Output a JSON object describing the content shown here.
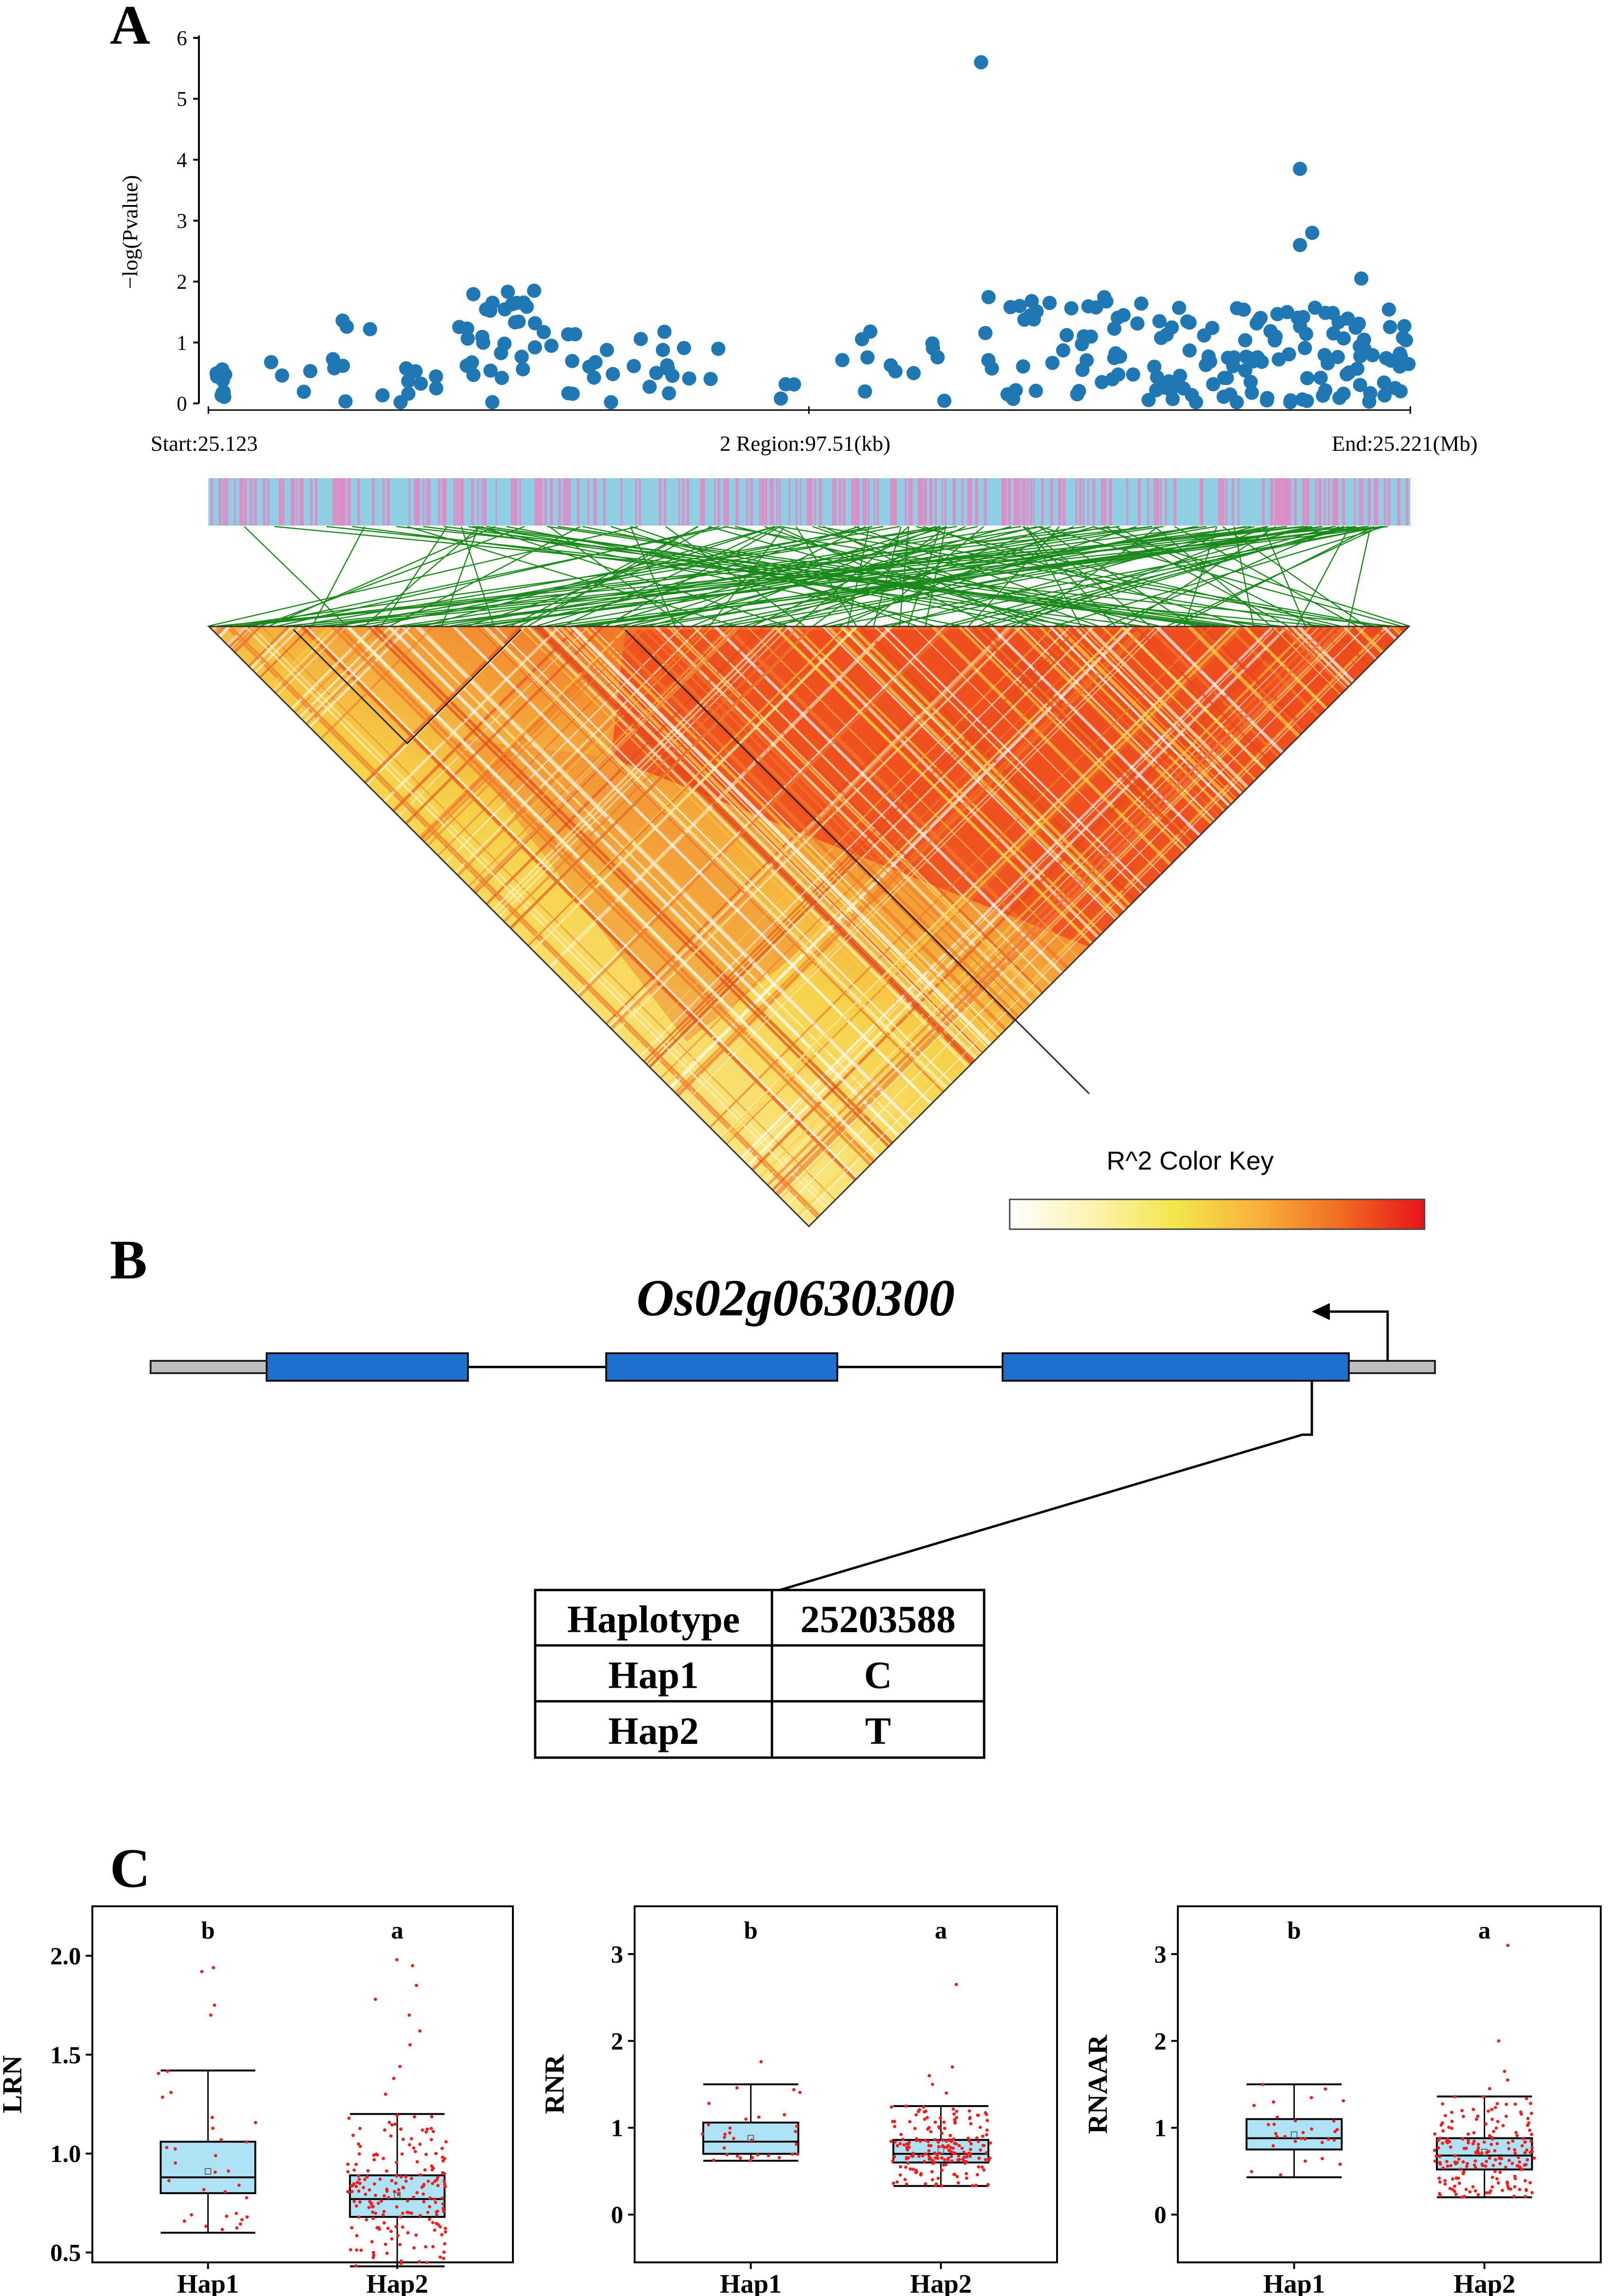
{
  "panels": {
    "A": "A",
    "B": "B",
    "C": "C"
  },
  "manhattan": {
    "ylabel": "−log(Pvalue)",
    "y_ticks": [
      "0",
      "1",
      "2",
      "3",
      "4",
      "5",
      "6"
    ],
    "start_label": "Start:25.123",
    "region_label": "2 Region:97.51(kb)",
    "end_label": "End:25.221(Mb)",
    "point_color": "#1f77b4"
  },
  "ld": {
    "color_key_title": "R^2 Color Key",
    "colors": [
      "#ffffff",
      "#fef8c8",
      "#f9ec78",
      "#f3e245",
      "#f9b23a",
      "#f77d24",
      "#ef3b1c",
      "#e8141a"
    ]
  },
  "gene": {
    "name": "Os02g0630300",
    "exon_color": "#1f6fcf"
  },
  "haplotype_table": {
    "headers": [
      "Haplotype",
      "25203588"
    ],
    "rows": [
      [
        "Hap1",
        "C"
      ],
      [
        "Hap2",
        "T"
      ]
    ]
  },
  "chart_data": [
    {
      "type": "scatter",
      "title": "",
      "xlabel": "2 Region:97.51(kb)",
      "ylabel": "−log(Pvalue)",
      "xlim": [
        25.123,
        25.221
      ],
      "ylim": [
        0,
        6
      ],
      "notable_points": [
        {
          "x": 25.186,
          "y": 5.6
        },
        {
          "x": 25.212,
          "y": 3.85
        },
        {
          "x": 25.213,
          "y": 2.8
        },
        {
          "x": 25.212,
          "y": 2.6
        },
        {
          "x": 25.217,
          "y": 2.05
        }
      ]
    },
    {
      "type": "box",
      "ylabel": "LRN",
      "categories": [
        "Hap1",
        "Hap2"
      ],
      "y_ticks": [
        "0.5",
        "1.0",
        "1.5",
        "2.0"
      ],
      "ylim": [
        0.45,
        2.25
      ],
      "letters": [
        "b",
        "a"
      ],
      "boxes": [
        {
          "min": 0.6,
          "q1": 0.8,
          "median": 0.88,
          "mean": 0.91,
          "q3": 1.06,
          "max": 1.42
        },
        {
          "min": 0.43,
          "q1": 0.68,
          "median": 0.77,
          "mean": 0.79,
          "q3": 0.89,
          "max": 1.2
        }
      ],
      "outliers": [
        [
          1.7,
          1.75,
          1.92,
          1.94
        ],
        [
          1.3,
          1.38,
          1.44,
          1.55,
          1.62,
          1.7,
          1.78,
          1.85,
          1.95,
          1.98
        ]
      ]
    },
    {
      "type": "box",
      "ylabel": "RNR",
      "categories": [
        "Hap1",
        "Hap2"
      ],
      "y_ticks": [
        "0",
        "1",
        "2",
        "3"
      ],
      "ylim": [
        -0.55,
        3.55
      ],
      "letters": [
        "b",
        "a"
      ],
      "boxes": [
        {
          "min": 0.62,
          "q1": 0.7,
          "median": 0.84,
          "mean": 0.88,
          "q3": 1.06,
          "max": 1.5
        },
        {
          "min": 0.33,
          "q1": 0.6,
          "median": 0.7,
          "mean": 0.74,
          "q3": 0.86,
          "max": 1.25
        }
      ],
      "outliers": [
        [
          1.76
        ],
        [
          1.4,
          1.5,
          1.6,
          1.7,
          2.65
        ]
      ]
    },
    {
      "type": "box",
      "ylabel": "RNAAR",
      "categories": [
        "Hap1",
        "Hap2"
      ],
      "y_ticks": [
        "0",
        "1",
        "2",
        "3"
      ],
      "ylim": [
        -0.55,
        3.55
      ],
      "letters": [
        "b",
        "a"
      ],
      "boxes": [
        {
          "min": 0.43,
          "q1": 0.75,
          "median": 0.88,
          "mean": 0.92,
          "q3": 1.1,
          "max": 1.5
        },
        {
          "min": 0.2,
          "q1": 0.52,
          "median": 0.68,
          "mean": 0.72,
          "q3": 0.88,
          "max": 1.36
        }
      ],
      "outliers": [
        [],
        [
          1.45,
          1.55,
          1.65,
          2.0,
          3.1
        ]
      ]
    }
  ]
}
